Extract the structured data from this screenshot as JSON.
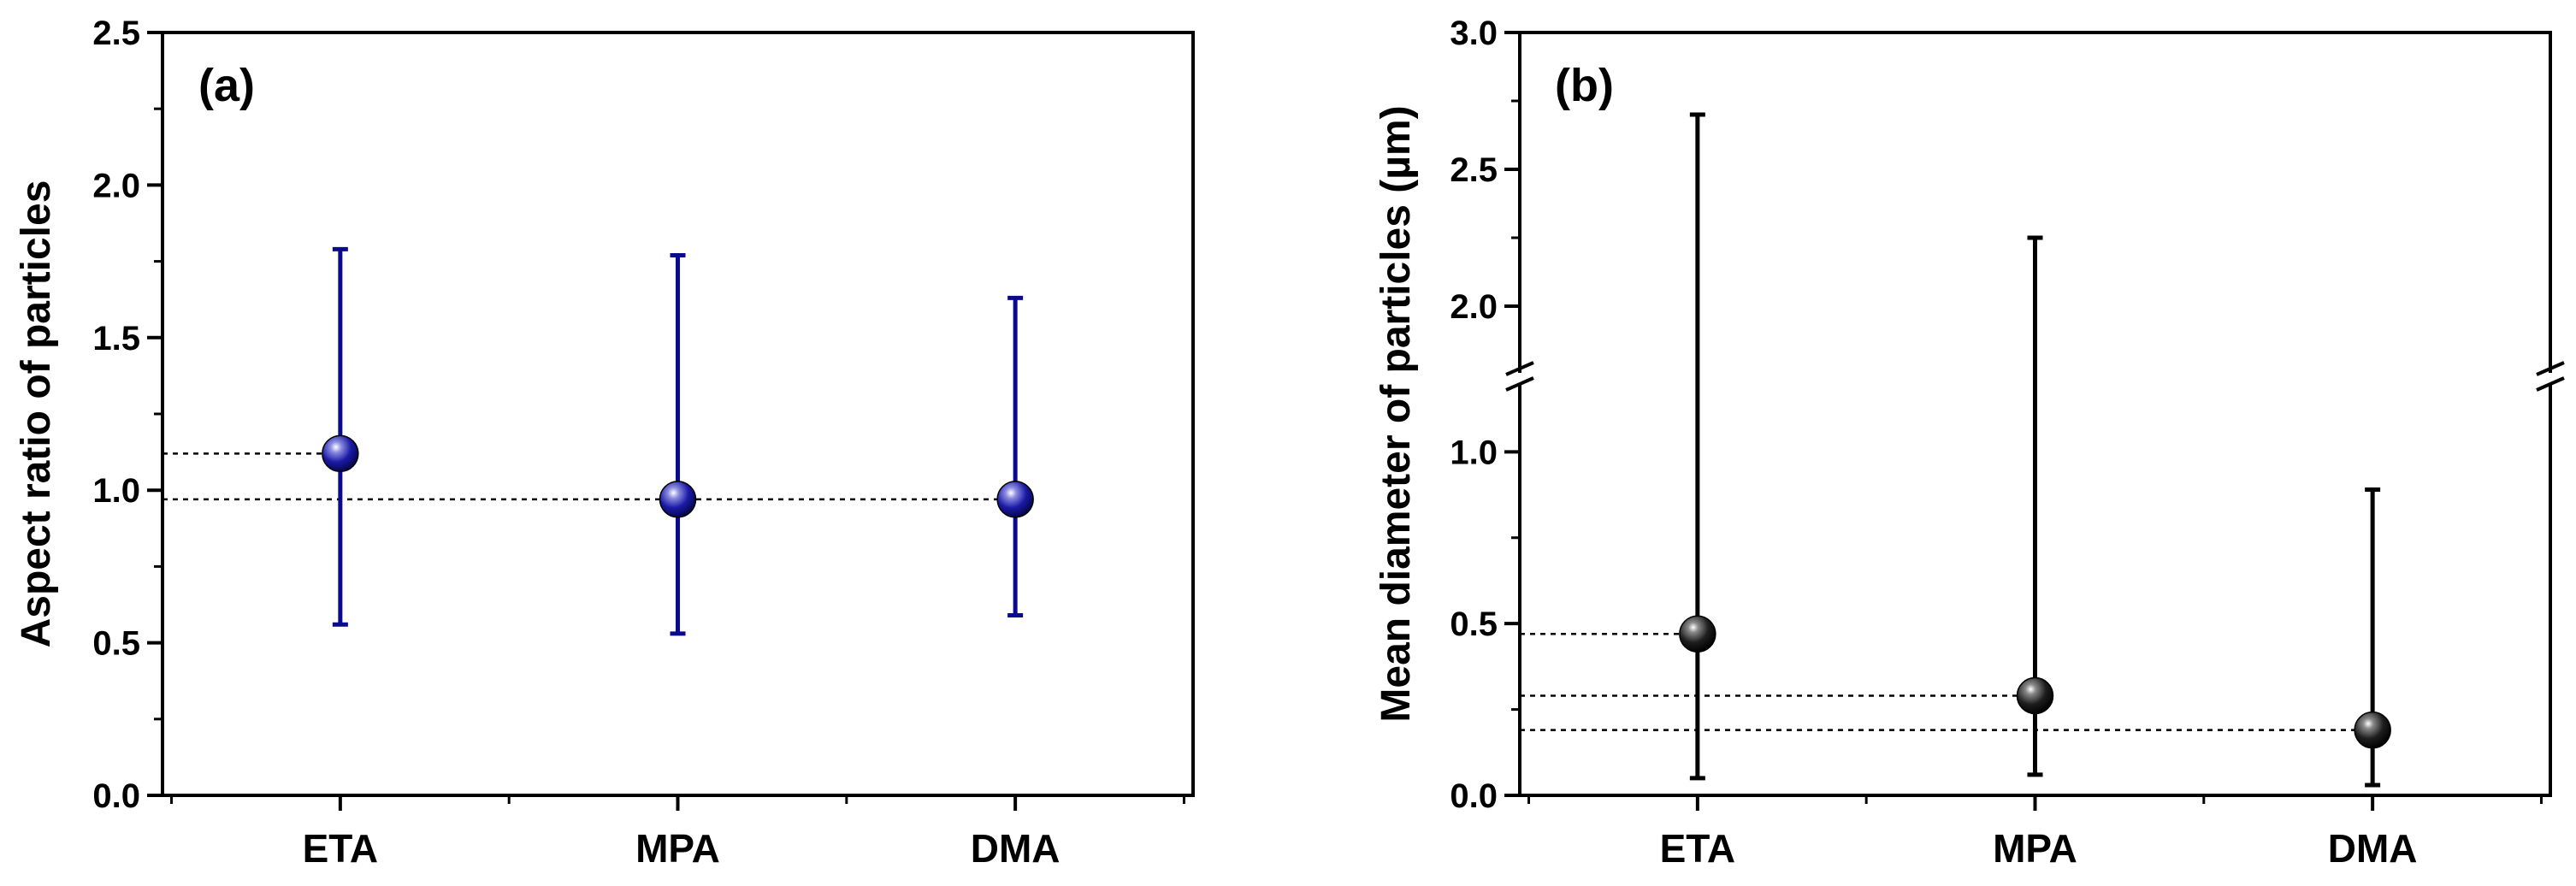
{
  "chart_data": [
    {
      "type": "scatter",
      "panel_label": "(a)",
      "ylabel": "Aspect ratio of particles",
      "xlabel": "",
      "categories": [
        "ETA",
        "MPA",
        "DMA"
      ],
      "values": [
        1.12,
        0.97,
        0.97
      ],
      "error_low": [
        0.56,
        0.53,
        0.59
      ],
      "error_high": [
        1.79,
        1.77,
        1.63
      ],
      "ylim": [
        0,
        2.5
      ],
      "yticks": [
        "0.0",
        "0.5",
        "1.0",
        "1.5",
        "2.0",
        "2.5"
      ],
      "color": "#0a0a8c",
      "reference_lines": [
        {
          "y": 1.12,
          "to_category": "ETA"
        },
        {
          "y": 0.97,
          "to_category": "DMA"
        }
      ]
    },
    {
      "type": "scatter",
      "panel_label": "(b)",
      "ylabel": "Mean diameter of particles (µm)",
      "xlabel": "",
      "categories": [
        "ETA",
        "MPA",
        "DMA"
      ],
      "values": [
        0.47,
        0.29,
        0.19
      ],
      "error_low": [
        0.05,
        0.06,
        0.03
      ],
      "error_high": [
        2.7,
        2.25,
        0.89
      ],
      "ylim": [
        0,
        3.0
      ],
      "axis_break": [
        1.2,
        1.75
      ],
      "yticks": [
        "0.0",
        "0.5",
        "1.0",
        "2.0",
        "2.5",
        "3.0"
      ],
      "color": "#000000",
      "reference_lines": [
        {
          "y": 0.47,
          "to_category": "ETA"
        },
        {
          "y": 0.29,
          "to_category": "MPA"
        },
        {
          "y": 0.19,
          "to_category": "DMA"
        }
      ]
    }
  ]
}
